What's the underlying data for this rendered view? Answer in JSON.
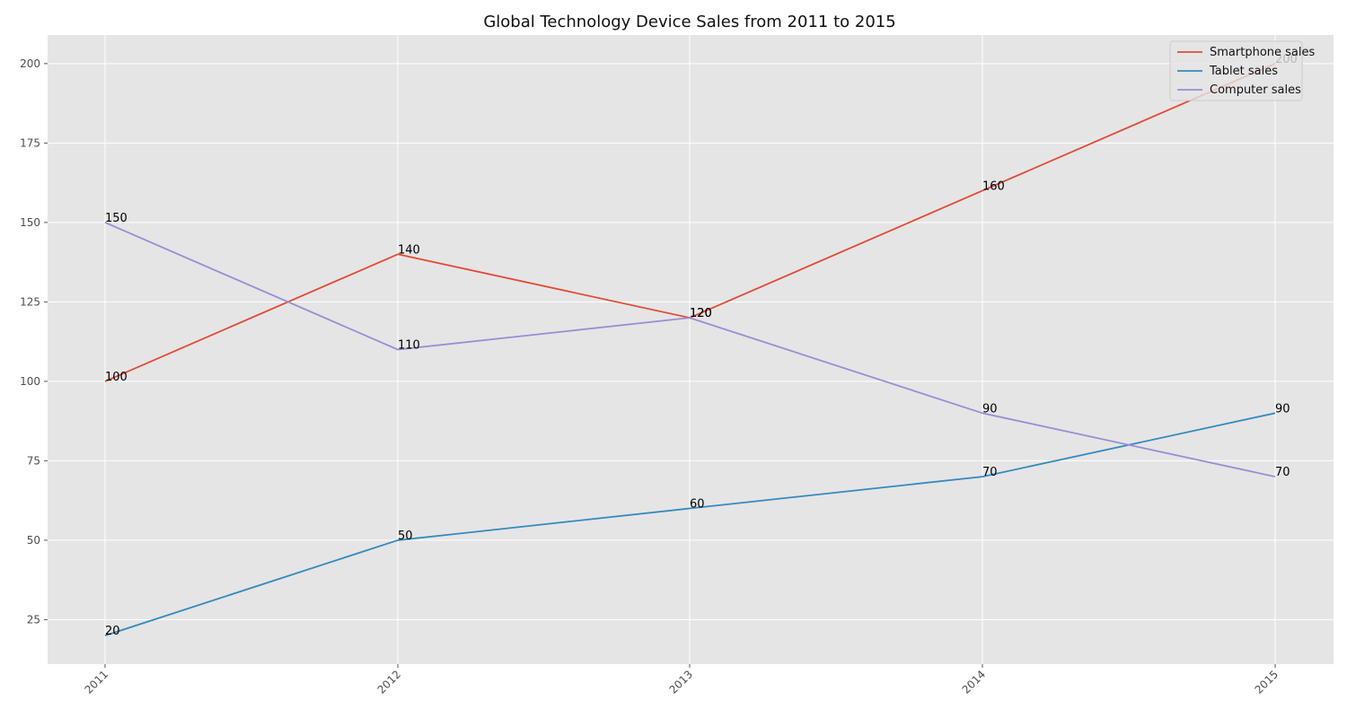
{
  "chart_data": {
    "type": "line",
    "title": "Global Technology Device Sales from 2011 to 2015",
    "xlabel": "",
    "ylabel": "",
    "categories": [
      "2011",
      "2012",
      "2013",
      "2014",
      "2015"
    ],
    "series": [
      {
        "name": "Smartphone sales",
        "color": "#E24A33",
        "values": [
          100,
          140,
          120,
          160,
          200
        ]
      },
      {
        "name": "Tablet sales",
        "color": "#348ABD",
        "values": [
          20,
          50,
          60,
          70,
          90
        ]
      },
      {
        "name": "Computer sales",
        "color": "#988ED5",
        "values": [
          150,
          110,
          120,
          90,
          70
        ]
      }
    ],
    "ylim": [
      11,
      209
    ],
    "yticks": [
      25,
      50,
      75,
      100,
      125,
      150,
      175,
      200
    ],
    "grid": true,
    "legend": "top-right",
    "data_labels": true,
    "xtick_rotation": 45,
    "background_color": "#E5E5E5",
    "grid_color": "#FFFFFF"
  }
}
